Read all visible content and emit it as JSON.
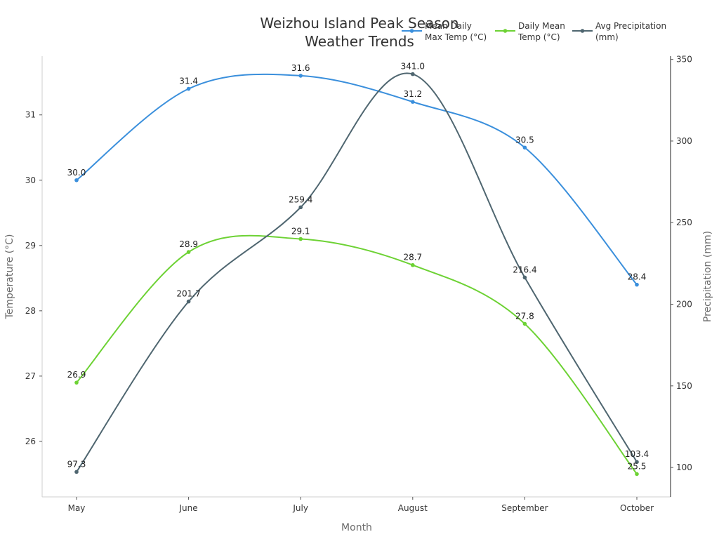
{
  "chart_data": {
    "type": "line",
    "title_lines": [
      "Weizhou Island Peak Season",
      "Weather Trends"
    ],
    "xlabel": "Month",
    "ylabel_left": "Temperature (°C)",
    "ylabel_right": "Precipitation (mm)",
    "categories": [
      "May",
      "June",
      "July",
      "August",
      "September",
      "October"
    ],
    "left_ylim": [
      25.15,
      31.9
    ],
    "left_ticks": [
      26,
      27,
      28,
      29,
      30,
      31
    ],
    "right_ylim": [
      82,
      352
    ],
    "right_ticks": [
      100,
      150,
      200,
      250,
      300,
      350
    ],
    "grid": false,
    "legend_position": "top-right",
    "series": [
      {
        "name_lines": [
          "Mean Daily",
          "Max Temp (°C)"
        ],
        "axis": "left",
        "color": "#3a8fdc",
        "values": [
          30.0,
          31.4,
          31.6,
          31.2,
          30.5,
          28.4
        ],
        "labels": [
          "30.0",
          "31.4",
          "31.6",
          "31.2",
          "30.5",
          "28.4"
        ]
      },
      {
        "name_lines": [
          "Daily Mean",
          "Temp (°C)"
        ],
        "axis": "left",
        "color": "#6dd234",
        "values": [
          26.9,
          28.9,
          29.1,
          28.7,
          27.8,
          25.5
        ],
        "labels": [
          "26.9",
          "28.9",
          "29.1",
          "28.7",
          "27.8",
          "25.5"
        ]
      },
      {
        "name_lines": [
          "Avg Precipitation",
          "(mm)"
        ],
        "axis": "right",
        "color": "#4f6670",
        "values": [
          97.3,
          201.7,
          259.4,
          341.0,
          216.4,
          103.4
        ],
        "labels": [
          "97.3",
          "201.7",
          "259.4",
          "341.0",
          "216.4",
          "103.4"
        ]
      }
    ]
  }
}
